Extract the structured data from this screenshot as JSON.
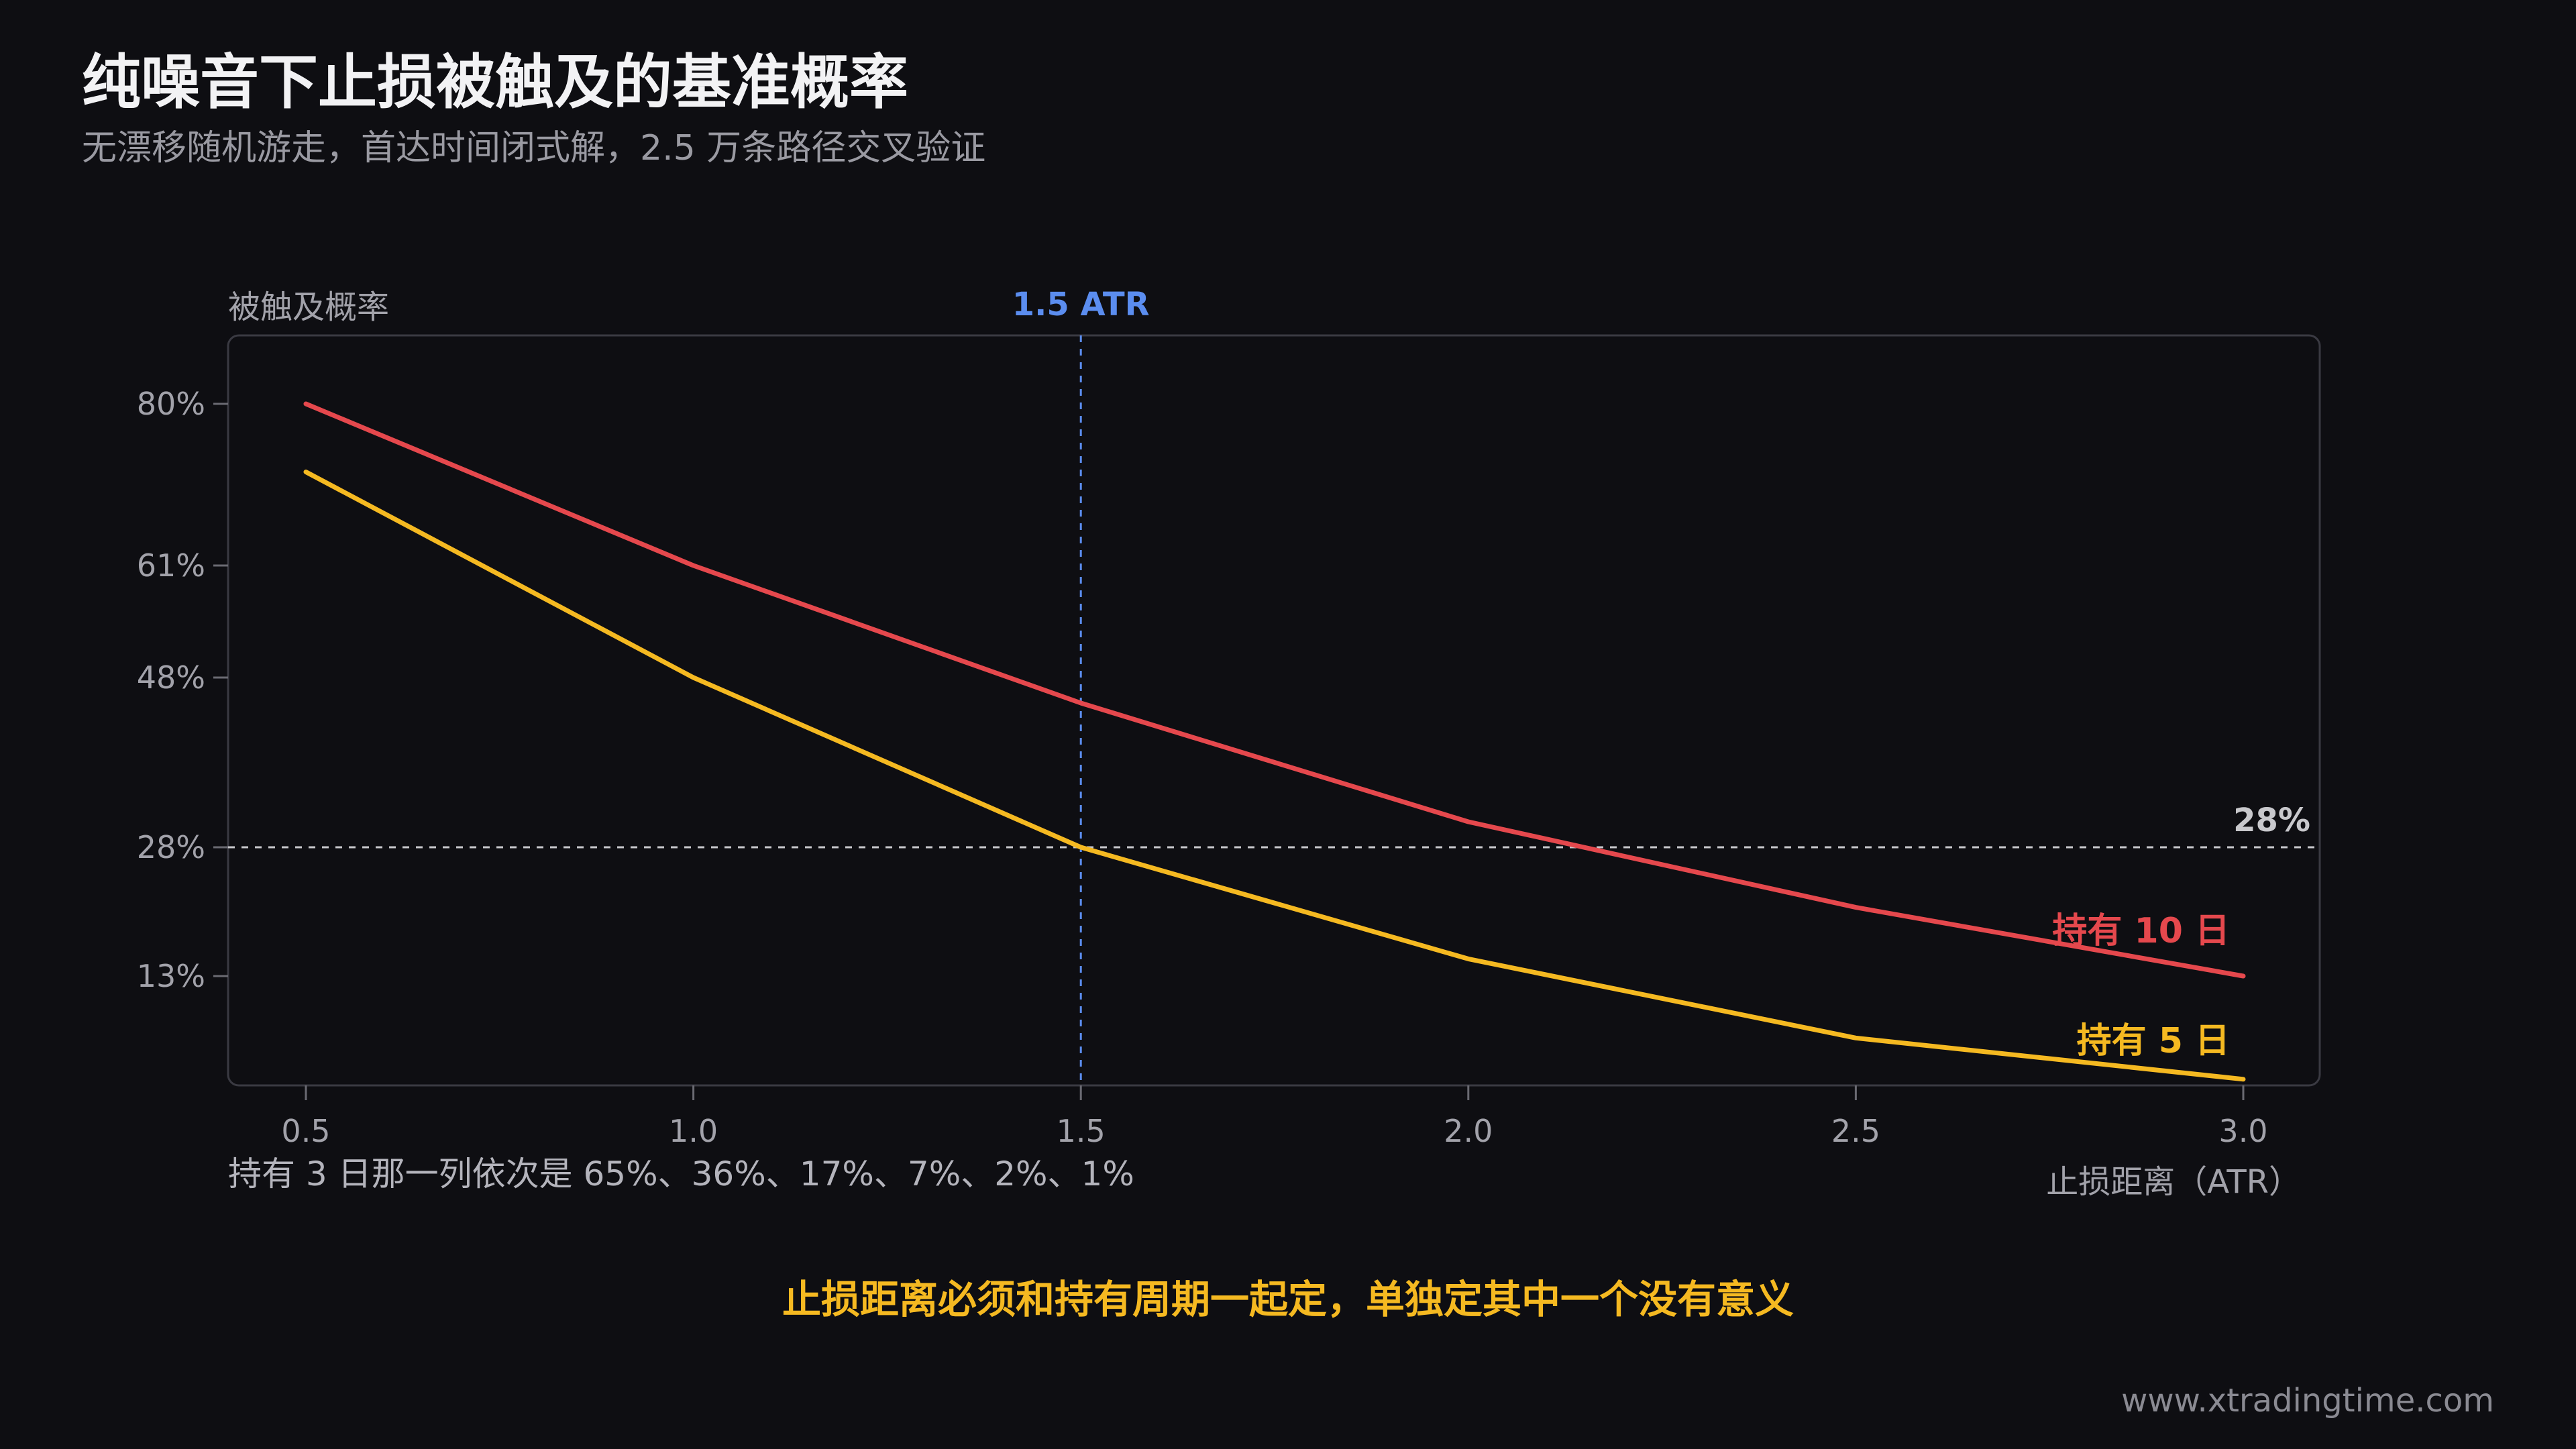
{
  "header": {
    "title": "纯噪音下止损被触及的基准概率",
    "subtitle": "无漂移随机游走，首达时间闭式解，2.5 万条路径交叉验证"
  },
  "note": "持有 3 日那一列依次是 65%、36%、17%、7%、2%、1%",
  "conclusion": "止损距离必须和持有周期一起定，单独定其中一个没有意义",
  "footer": "www.xtradingtime.com",
  "chart_data": {
    "type": "line",
    "ylabel": "被触及概率",
    "xlabel": "止损距离（ATR）",
    "x": [
      0.5,
      1.0,
      1.5,
      2.0,
      2.5,
      3.0
    ],
    "x_tick_labels": [
      "0.5",
      "1.0",
      "1.5",
      "2.0",
      "2.5",
      "3.0"
    ],
    "y_ticks": [
      13,
      28,
      48,
      61,
      80
    ],
    "y_tick_labels": [
      "13%",
      "28%",
      "48%",
      "61%",
      "80%"
    ],
    "y_scale": "nonlinear (ticks at 80%, 61%, 48%, 28%, 13%)",
    "series": [
      {
        "name": "持有 10 日",
        "color": "#e5484d",
        "values": [
          80,
          61,
          45,
          31,
          21,
          13
        ]
      },
      {
        "name": "持有 5 日",
        "color": "#f5b921",
        "values": [
          72,
          48,
          28,
          15,
          7,
          3
        ]
      }
    ],
    "reference_lines": {
      "vertical": {
        "x": 1.5,
        "label": "1.5 ATR",
        "color": "#5b8def"
      },
      "horizontal": {
        "y": 28,
        "label": "28%",
        "color": "#c8c8cc"
      }
    },
    "grid": false,
    "legend": "inline labels at line ends"
  }
}
